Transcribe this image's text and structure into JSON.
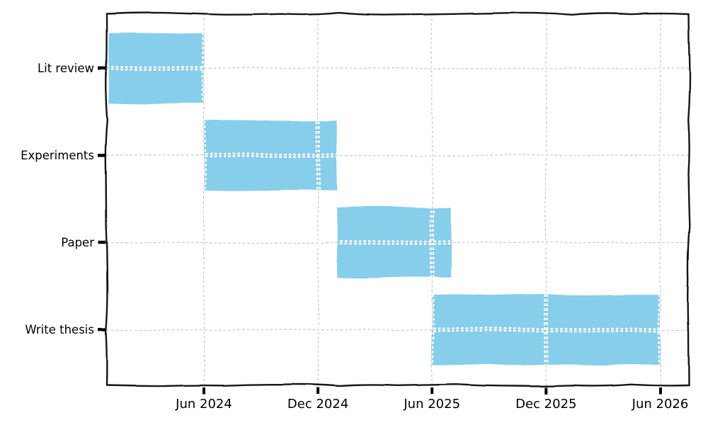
{
  "figure": {
    "background": "#ffffff",
    "style": "xkcd-hand-drawn-matplotlib"
  },
  "chart_data": {
    "type": "bar",
    "subtype": "gantt",
    "orientation": "horizontal",
    "title": "",
    "xlabel": "",
    "ylabel": "",
    "grid": true,
    "grid_style": "dashed",
    "legend": false,
    "categories": [
      "Lit review",
      "Experiments",
      "Paper",
      "Write thesis"
    ],
    "tasks": [
      {
        "label": "Lit review",
        "start": "Jan 2024",
        "end": "Jun 2024",
        "start_month": 0,
        "end_month": 5
      },
      {
        "label": "Experiments",
        "start": "Jun 2024",
        "end": "Jan 2025",
        "start_month": 5,
        "end_month": 12
      },
      {
        "label": "Paper",
        "start": "Jan 2025",
        "end": "Jul 2025",
        "start_month": 12,
        "end_month": 18
      },
      {
        "label": "Write thesis",
        "start": "Jun 2025",
        "end": "Jun 2026",
        "start_month": 17,
        "end_month": 29
      }
    ],
    "x_ticks": [
      {
        "label": "Jun 2024",
        "month": 5
      },
      {
        "label": "Dec 2024",
        "month": 11
      },
      {
        "label": "Jun 2025",
        "month": 17
      },
      {
        "label": "Dec 2025",
        "month": 23
      },
      {
        "label": "Jun 2026",
        "month": 29
      }
    ],
    "colors": {
      "bar_fill": "#87CEEB",
      "grid_line": "#c7c7c7",
      "grid_halo": "#ffffff",
      "axis_line": "#141414",
      "tick": "#000000",
      "text": "#000000",
      "background": "#ffffff"
    }
  }
}
